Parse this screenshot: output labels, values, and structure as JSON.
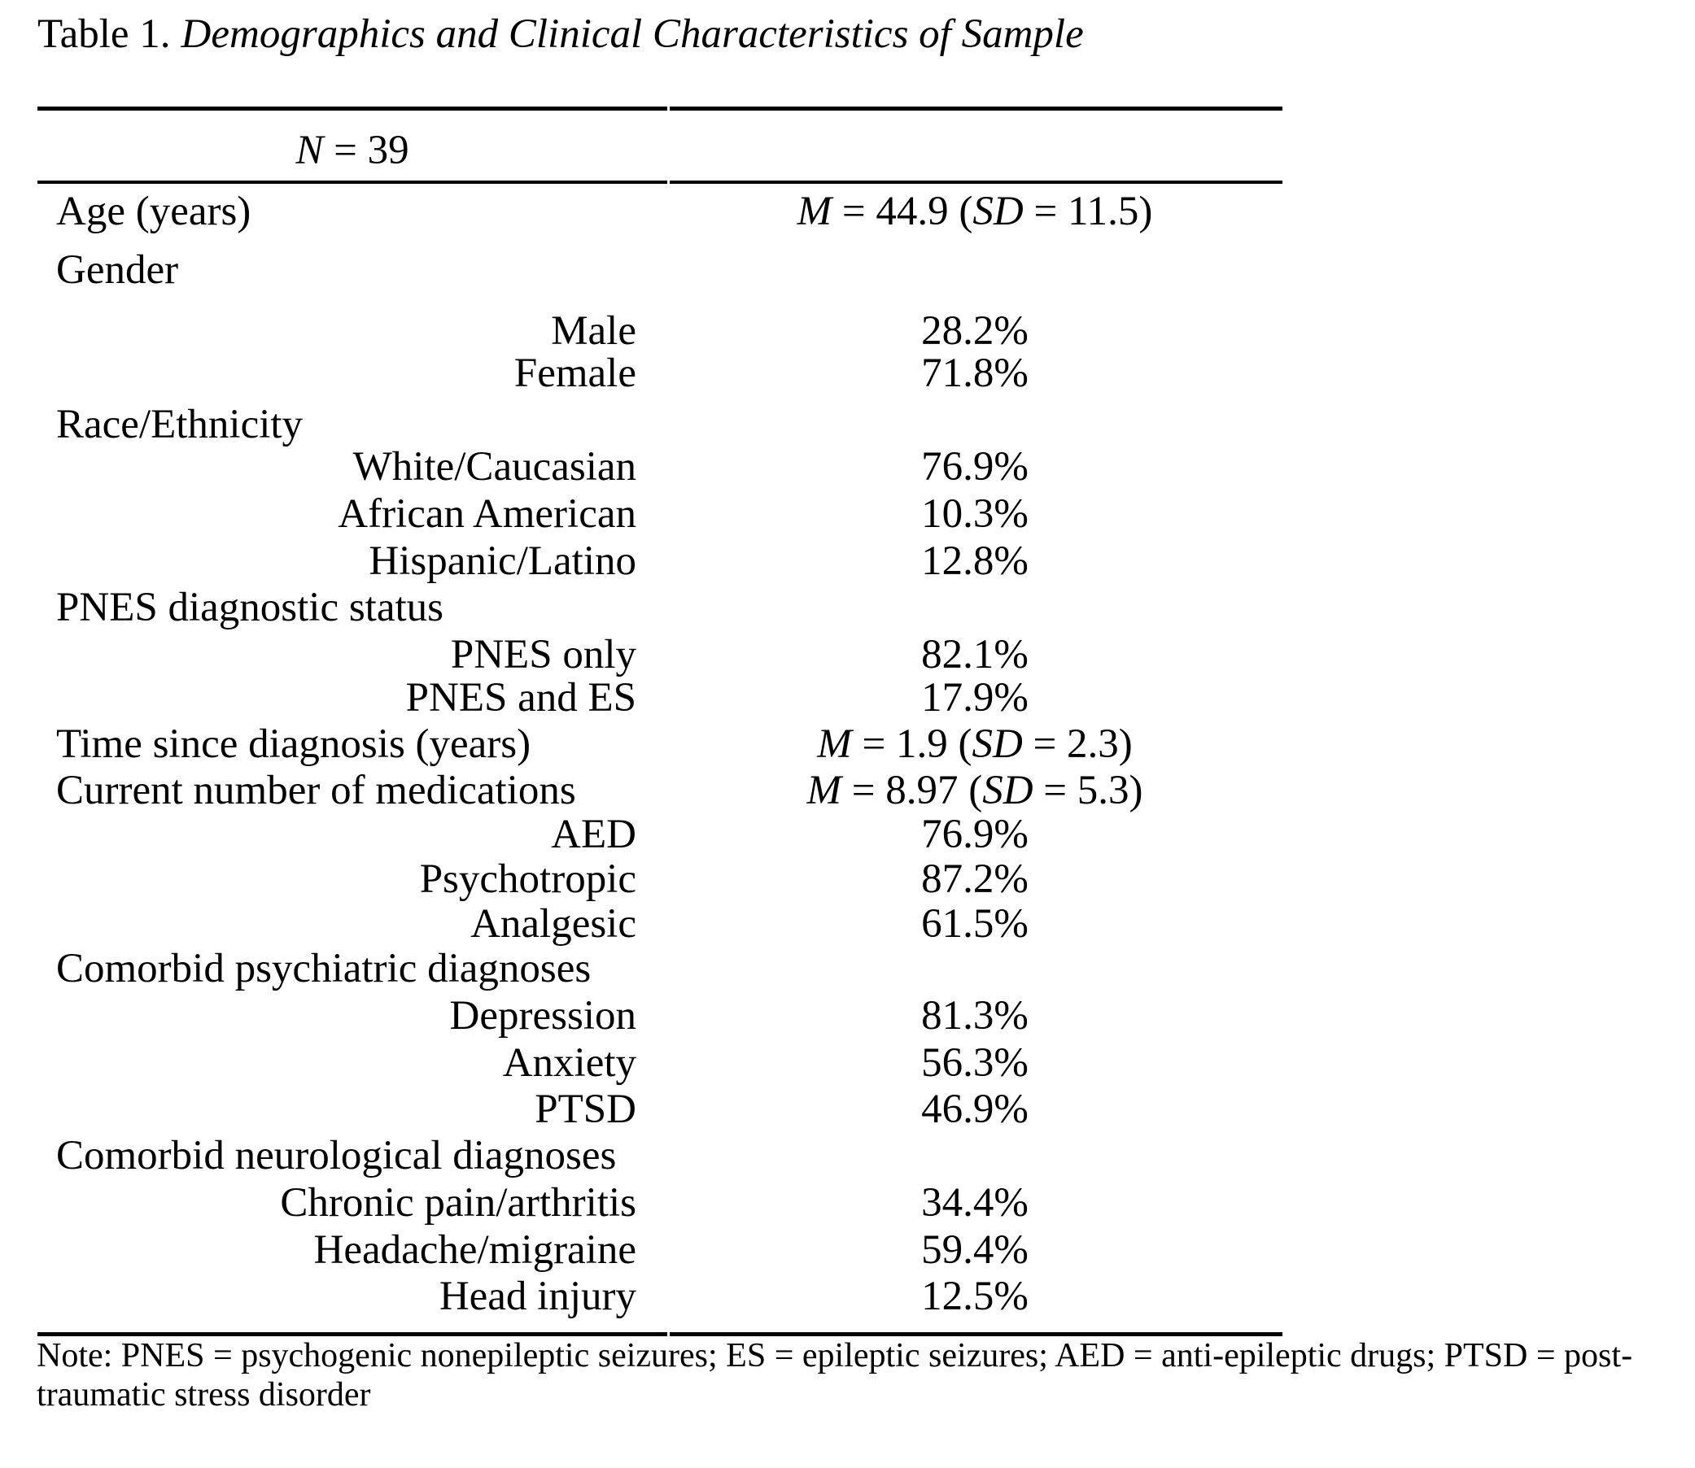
{
  "page": {
    "background_color": "#ffffff",
    "text_color": "#000000"
  },
  "caption": {
    "label": "Table 1.",
    "title": "Demographics and Clinical Characteristics of Sample"
  },
  "table": {
    "header": {
      "sample_size": "N = 39"
    },
    "rows": [
      {
        "label": "Age (years)",
        "level": "main",
        "value": "M = 44.9 (SD = 11.5)"
      },
      {
        "label": "Gender",
        "level": "main",
        "value": ""
      },
      {
        "label": "Male",
        "level": "sub",
        "value": "28.2%"
      },
      {
        "label": "Female",
        "level": "sub",
        "value": "71.8%"
      },
      {
        "label": "Race/Ethnicity",
        "level": "main",
        "value": ""
      },
      {
        "label": "White/Caucasian",
        "level": "sub",
        "value": "76.9%"
      },
      {
        "label": "African American",
        "level": "sub",
        "value": "10.3%"
      },
      {
        "label": "Hispanic/Latino",
        "level": "sub",
        "value": "12.8%"
      },
      {
        "label": "PNES diagnostic status",
        "level": "main",
        "value": ""
      },
      {
        "label": "PNES only",
        "level": "sub",
        "value": "82.1%"
      },
      {
        "label": "PNES and ES",
        "level": "sub",
        "value": "17.9%"
      },
      {
        "label": "Time since diagnosis (years)",
        "level": "main",
        "value": "M = 1.9 (SD = 2.3)"
      },
      {
        "label": "Current number of medications",
        "level": "main",
        "value": "M = 8.97 (SD = 5.3)"
      },
      {
        "label": "AED",
        "level": "sub",
        "value": "76.9%"
      },
      {
        "label": "Psychotropic",
        "level": "sub",
        "value": "87.2%"
      },
      {
        "label": "Analgesic",
        "level": "sub",
        "value": "61.5%"
      },
      {
        "label": "Comorbid psychiatric diagnoses",
        "level": "main",
        "value": ""
      },
      {
        "label": "Depression",
        "level": "sub",
        "value": "81.3%"
      },
      {
        "label": "Anxiety",
        "level": "sub",
        "value": "56.3%"
      },
      {
        "label": "PTSD",
        "level": "sub",
        "value": "46.9%"
      },
      {
        "label": "Comorbid neurological diagnoses",
        "level": "main",
        "value": ""
      },
      {
        "label": "Chronic pain/arthritis",
        "level": "sub",
        "value": "34.4%"
      },
      {
        "label": "Headache/migraine",
        "level": "sub",
        "value": "59.4%"
      },
      {
        "label": "Head injury",
        "level": "sub",
        "value": "12.5%"
      }
    ]
  },
  "note": {
    "line1": "Note: PNES = psychogenic nonepileptic seizures; ES = epileptic seizures; AED = anti-epileptic drugs; PTSD = post-",
    "line2": "traumatic stress disorder"
  }
}
